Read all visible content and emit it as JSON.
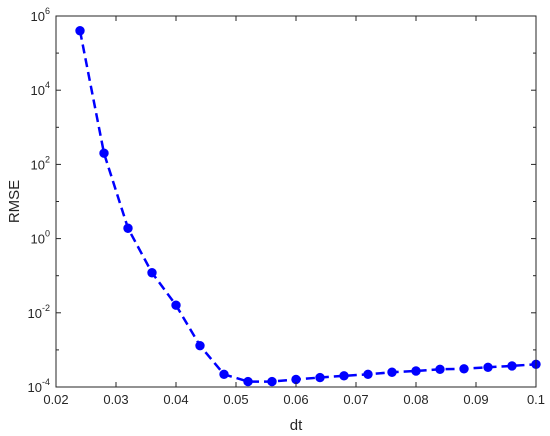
{
  "chart_data": {
    "type": "line",
    "title": "",
    "xlabel": "dt",
    "ylabel": "RMSE",
    "xlim": [
      0.02,
      0.1
    ],
    "ylim": [
      0.0001,
      1000000
    ],
    "y_scale": "log",
    "grid": false,
    "legend": "none",
    "x_ticks": [
      "0.02",
      "0.03",
      "0.04",
      "0.05",
      "0.06",
      "0.07",
      "0.08",
      "0.09",
      "0.1"
    ],
    "y_tick_values": [
      0.0001,
      0.01,
      1,
      100,
      10000,
      1000000
    ],
    "y_ticks": [
      {
        "base": "10",
        "exp": "-4"
      },
      {
        "base": "10",
        "exp": "-2"
      },
      {
        "base": "10",
        "exp": "0"
      },
      {
        "base": "10",
        "exp": "2"
      },
      {
        "base": "10",
        "exp": "4"
      },
      {
        "base": "10",
        "exp": "6"
      }
    ],
    "series": [
      {
        "line_style": "dashed",
        "marker": "filled-circle",
        "color": "#0000ff",
        "x": [
          0.024,
          0.028,
          0.032,
          0.036,
          0.04,
          0.044,
          0.048,
          0.052,
          0.056,
          0.06,
          0.064,
          0.068,
          0.072,
          0.076,
          0.08,
          0.084,
          0.088,
          0.092,
          0.096,
          0.1
        ],
        "y": [
          400000,
          200,
          1.9,
          0.12,
          0.016,
          0.0013,
          0.00022,
          0.00014,
          0.00014,
          0.00016,
          0.00018,
          0.0002,
          0.00022,
          0.00025,
          0.00027,
          0.0003,
          0.00031,
          0.00034,
          0.00037,
          0.00041
        ]
      }
    ]
  }
}
